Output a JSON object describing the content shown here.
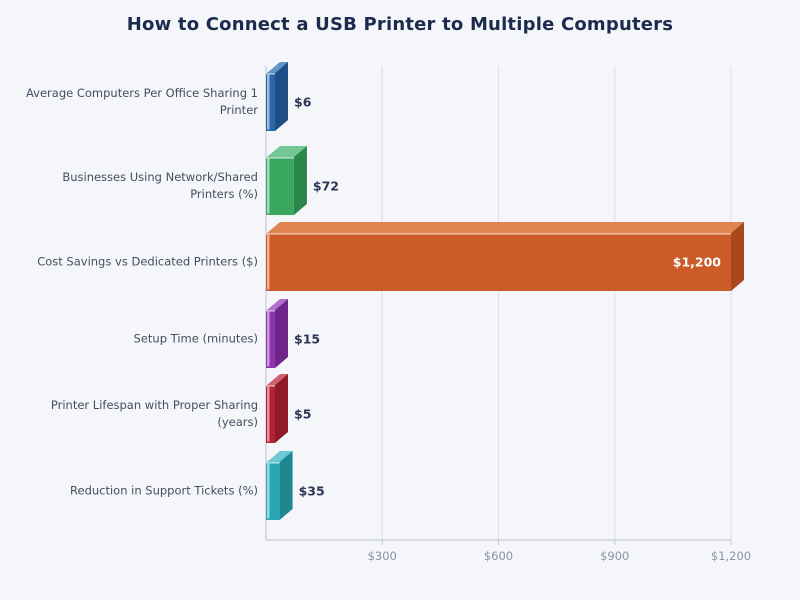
{
  "title": "How to Connect a USB Printer to Multiple Computers",
  "colors": {
    "background": "#f5f6fa",
    "title": "#1c2b4d",
    "category_label": "#454d60",
    "value_label": "#2d3457",
    "value_label_inside": "#ffffff",
    "tick_label": "#8b93a6",
    "grid": "#dfe2ea",
    "axis": "#c6cbd5",
    "seam": "rgba(255,255,255,0.6)"
  },
  "chart_data": {
    "type": "bar",
    "orientation": "horizontal",
    "title": "How to Connect a USB Printer to Multiple Computers",
    "categories": [
      "Average Computers Per Office Sharing 1\nPrinter",
      "Businesses Using Network/Shared\nPrinters (%)",
      "Cost Savings vs Dedicated Printers ($)",
      "Setup Time (minutes)",
      "Printer Lifespan with Proper Sharing\n(years)",
      "Reduction in Support Tickets (%)"
    ],
    "values": [
      6,
      72,
      1200,
      15,
      5,
      35
    ],
    "value_labels": [
      "$6",
      "$72",
      "$1,200",
      "$15",
      "$5",
      "$35"
    ],
    "xlim": [
      0,
      1200
    ],
    "x_ticks": [
      {
        "value": 300,
        "label": "$300"
      },
      {
        "value": 600,
        "label": "$600"
      },
      {
        "value": 900,
        "label": "$900"
      },
      {
        "value": 1200,
        "label": "$1,200"
      }
    ],
    "grid": true,
    "legend": "none",
    "bar_colors": [
      {
        "front": "#2b66a9",
        "top": "#6094cc",
        "side": "#1d4e86",
        "light": "#aac6e4"
      },
      {
        "front": "#3aa75f",
        "top": "#74c795",
        "side": "#2a8649",
        "light": "#b4dfc6"
      },
      {
        "front": "#cb5b28",
        "top": "#e28550",
        "side": "#a8481d",
        "light": "#edbb9b"
      },
      {
        "front": "#8d36ac",
        "top": "#b36fd0",
        "side": "#6f2589",
        "light": "#d4a6e3"
      },
      {
        "front": "#b22433",
        "top": "#d0606e",
        "side": "#8e1b27",
        "light": "#e3a2ab"
      },
      {
        "front": "#2aa7b2",
        "top": "#6cc8d2",
        "side": "#1e8791",
        "light": "#a8dde3"
      }
    ]
  }
}
